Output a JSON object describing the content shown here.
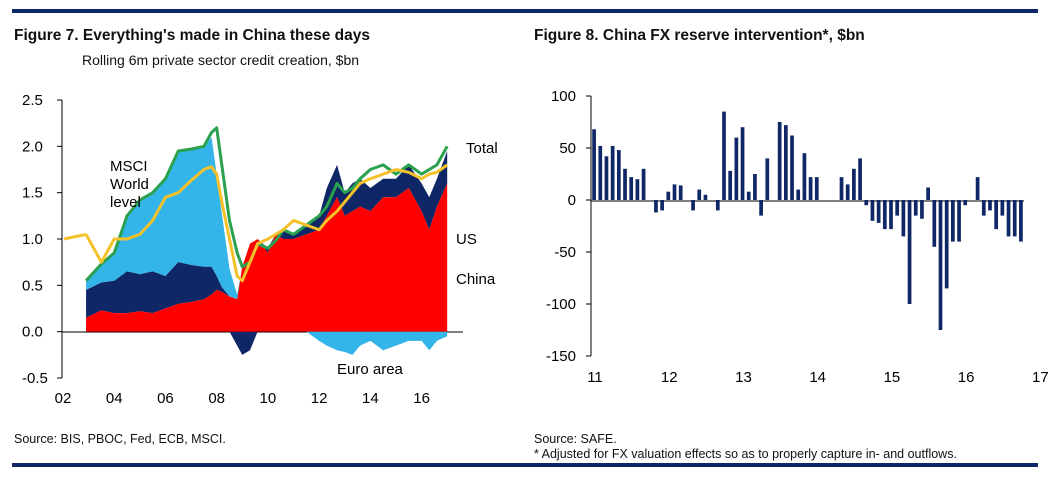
{
  "fig7": {
    "title": "Figure 7. Everything's made in China these days",
    "subtitle": "Rolling 6m private sector credit creation, $bn",
    "source": "Source: BIS, PBOC, Fed, ECB, MSCI.",
    "labels": {
      "msci_l1": "MSCI",
      "msci_l2": "World",
      "msci_l3": "level",
      "total": "Total",
      "us": "US",
      "china": "China",
      "euro": "Euro area"
    }
  },
  "fig8": {
    "title": "Figure 8. China FX reserve intervention*, $bn",
    "source": "Source: SAFE.",
    "footnote": "* Adjusted for FX valuation effects so as to properly capture in- and outflows."
  },
  "colors": {
    "china": "#ff0000",
    "us": "#0f2766",
    "euro": "#33b5ea",
    "total": "#2aa14e",
    "msci": "#f5c12a",
    "bars": "#0f2766",
    "rule": "#0f2766"
  },
  "chart_data": [
    {
      "type": "area",
      "title": "Rolling 6m private sector credit creation, $bn",
      "xlabel": "",
      "ylabel": "",
      "xlim": [
        2002,
        2017.5
      ],
      "ylim": [
        -0.5,
        2.5
      ],
      "yticks": [
        2.5,
        2.0,
        1.5,
        1.0,
        0.5,
        0.0,
        -0.5
      ],
      "ytick_labels": [
        "2.5",
        "2.0",
        "1.5",
        "1.0",
        "0.5",
        "0.0",
        "-0.5"
      ],
      "xticks": [
        2002,
        2004,
        2006,
        2008,
        2010,
        2012,
        2014,
        2016
      ],
      "xtick_labels": [
        "02",
        "04",
        "06",
        "08",
        "10",
        "12",
        "14",
        "16"
      ],
      "x": [
        2002.9,
        2003.5,
        2004.0,
        2004.5,
        2005.0,
        2005.5,
        2006.0,
        2006.5,
        2007.0,
        2007.5,
        2007.8,
        2008.0,
        2008.2,
        2008.5,
        2008.8,
        2009.0,
        2009.3,
        2009.6,
        2010.0,
        2010.3,
        2010.6,
        2011.0,
        2011.5,
        2012.0,
        2012.3,
        2012.7,
        2013.0,
        2013.3,
        2013.6,
        2014.0,
        2014.5,
        2015.0,
        2015.5,
        2016.0,
        2016.3,
        2016.6,
        2017.0
      ],
      "series": [
        {
          "name": "China",
          "values": [
            0.15,
            0.23,
            0.2,
            0.2,
            0.22,
            0.2,
            0.25,
            0.3,
            0.32,
            0.35,
            0.4,
            0.45,
            0.43,
            0.38,
            0.35,
            0.7,
            0.95,
            1.0,
            0.85,
            1.05,
            1.0,
            1.0,
            1.05,
            1.1,
            1.25,
            1.45,
            1.25,
            1.3,
            1.35,
            1.3,
            1.45,
            1.45,
            1.55,
            1.3,
            1.1,
            1.35,
            1.6
          ]
        },
        {
          "name": "US",
          "values": [
            0.3,
            0.3,
            0.35,
            0.45,
            0.4,
            0.45,
            0.35,
            0.45,
            0.4,
            0.35,
            0.3,
            0.15,
            0.05,
            0.0,
            -0.15,
            -0.25,
            -0.2,
            0.0,
            0.05,
            0.0,
            0.1,
            0.05,
            0.1,
            0.15,
            0.3,
            0.35,
            0.25,
            0.3,
            0.3,
            0.25,
            0.2,
            0.2,
            0.25,
            0.3,
            0.35,
            0.3,
            0.35
          ]
        },
        {
          "name": "Euro area",
          "values": [
            0.1,
            0.2,
            0.3,
            0.6,
            0.8,
            0.85,
            1.05,
            1.2,
            1.25,
            1.3,
            1.4,
            1.1,
            0.8,
            0.3,
            0.05,
            0.0,
            0.0,
            0.0,
            0.0,
            0.0,
            0.0,
            0.0,
            0.0,
            -0.1,
            -0.15,
            -0.2,
            -0.22,
            -0.25,
            -0.15,
            -0.1,
            -0.2,
            -0.15,
            -0.1,
            -0.1,
            -0.2,
            -0.1,
            -0.05
          ]
        },
        {
          "name": "Total",
          "values": [
            0.55,
            0.73,
            0.85,
            1.25,
            1.42,
            1.5,
            1.65,
            1.95,
            1.97,
            2.0,
            2.15,
            2.2,
            1.8,
            1.2,
            0.85,
            0.7,
            0.75,
            0.95,
            0.9,
            0.98,
            1.1,
            1.05,
            1.15,
            1.25,
            1.35,
            1.6,
            1.5,
            1.55,
            1.65,
            1.75,
            1.8,
            1.7,
            1.8,
            1.7,
            1.75,
            1.8,
            2.0
          ]
        },
        {
          "name": "MSCI World level",
          "values": [
            1.05,
            0.75,
            1.0,
            1.0,
            1.05,
            1.2,
            1.45,
            1.5,
            1.63,
            1.75,
            1.78,
            1.7,
            1.4,
            1.0,
            0.6,
            0.55,
            0.75,
            0.95,
            1.0,
            1.05,
            1.1,
            1.2,
            1.15,
            1.1,
            1.2,
            1.3,
            1.4,
            1.5,
            1.6,
            1.65,
            1.7,
            1.75,
            1.72,
            1.65,
            1.7,
            1.72,
            1.8
          ]
        }
      ]
    },
    {
      "type": "bar",
      "title": "China FX reserve intervention*, $bn",
      "xlabel": "",
      "ylabel": "",
      "ylim": [
        -150,
        100
      ],
      "yticks": [
        100,
        50,
        0,
        -50,
        -100,
        -150
      ],
      "ytick_labels": [
        "100",
        "50",
        "0",
        "-50",
        "-100",
        "-150"
      ],
      "xtick_labels": [
        "11",
        "12",
        "13",
        "14",
        "15",
        "16",
        "17"
      ],
      "start_year": 2011,
      "values": [
        68,
        52,
        42,
        52,
        48,
        30,
        22,
        20,
        30,
        0,
        -12,
        -10,
        8,
        15,
        14,
        0,
        -10,
        10,
        5,
        0,
        -10,
        85,
        28,
        60,
        70,
        8,
        25,
        -15,
        40,
        0,
        75,
        72,
        62,
        10,
        45,
        22,
        22,
        0,
        0,
        0,
        22,
        15,
        30,
        40,
        -5,
        -20,
        -22,
        -28,
        -28,
        -15,
        -35,
        -100,
        -15,
        -18,
        12,
        -45,
        -125,
        -85,
        -40,
        -40,
        -5,
        0,
        22,
        -15,
        -10,
        -28,
        -15,
        -35,
        -35,
        -40
      ]
    }
  ]
}
